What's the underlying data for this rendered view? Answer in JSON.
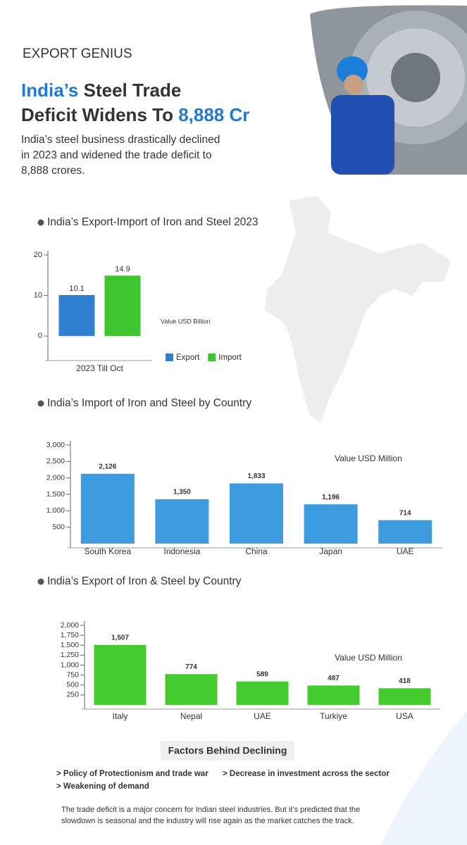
{
  "header": {
    "logo": "EXPORT GENIUS",
    "title_parts": [
      "India’s",
      "Steel Trade",
      "Deficit Widens To",
      "8,888 Cr"
    ],
    "subtitle_lines": [
      "India’s steel business drastically declined",
      "in 2023 and widened the trade deficit to",
      "8,888 crores."
    ]
  },
  "chart_data": [
    {
      "type": "bar",
      "title": "India’s Export-Import of  Iron and Steel 2023",
      "annotation": "Value USD Billion",
      "categories": [
        "2023 Till Oct"
      ],
      "series": [
        {
          "name": "Export",
          "color": "#2f7fd0",
          "values": [
            10.1
          ]
        },
        {
          "name": "Import",
          "color": "#3fc52f",
          "values": [
            14.9
          ]
        }
      ],
      "ylim": [
        -5,
        20
      ],
      "yticks": [
        0,
        10,
        20
      ],
      "legend": "bottom-right"
    },
    {
      "type": "bar",
      "title": "India’s Import of  Iron and Steel by Country",
      "annotation": "Value USD Million",
      "categories": [
        "South Korea",
        "Indonesia",
        "China",
        "Japan",
        "UAE"
      ],
      "color": "#3d9be0",
      "values": [
        2126,
        1350,
        1833,
        1196,
        714
      ],
      "value_labels": [
        "2,126",
        "1,350",
        "1,833",
        "1,196",
        "714"
      ],
      "ylim": [
        0,
        3000
      ],
      "yticks": [
        500,
        {
          "value": 1000,
          "label": "1,000"
        },
        {
          "value": 1500,
          "label": "1,500"
        },
        {
          "value": 2000,
          "label": "2,000"
        },
        {
          "value": 2500,
          "label": "2,500"
        },
        {
          "value": 3000,
          "label": "3,000"
        }
      ]
    },
    {
      "type": "bar",
      "title": "India’s Export of  Iron & Steel by Country",
      "annotation": "Value USD Million",
      "categories": [
        "Italy",
        "Nepal",
        "UAE",
        "Turkiye",
        "USA"
      ],
      "color": "#44cc2e",
      "values": [
        1507,
        774,
        589,
        487,
        418
      ],
      "value_labels": [
        "1,507",
        "774",
        "589",
        "487",
        "418"
      ],
      "ylim": [
        0,
        2000
      ],
      "yticks": [
        250,
        500,
        750,
        {
          "value": 1000,
          "label": "1,000"
        },
        {
          "value": 1250,
          "label": "1,250"
        },
        {
          "value": 1500,
          "label": "1,500"
        },
        {
          "value": 1750,
          "label": "1,750"
        },
        {
          "value": 2000,
          "label": "2,000"
        }
      ]
    }
  ],
  "factors": {
    "heading": "Factors Behind Declining",
    "items": [
      "> Policy of Protectionism and trade war",
      "> Decrease in investment across the sector",
      "> Weakening of demand"
    ],
    "paragraph_lines": [
      "The trade deficit is a major concern for Indian steel industries. But it’s predicted that the",
      "slowdown is seasonal and the industry will rise again as the market catches the track."
    ]
  }
}
